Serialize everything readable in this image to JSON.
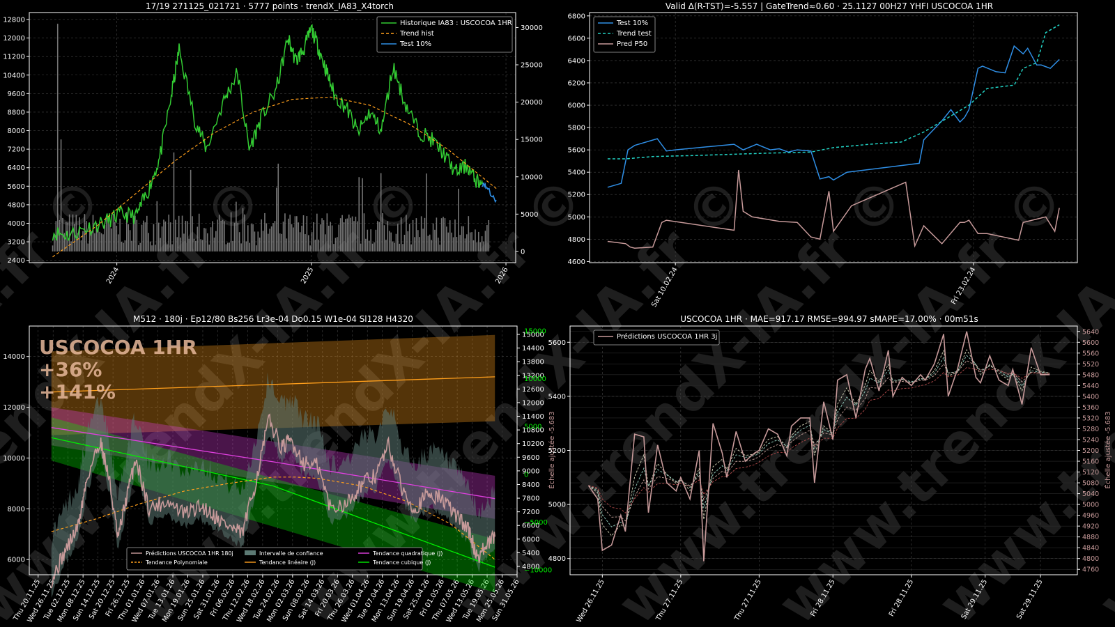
{
  "colors": {
    "background": "#000000",
    "axis": "#ffffff",
    "grid": "#444444",
    "green": "#33cc33",
    "orange": "#ff9f1c",
    "blue": "#2f8fe6",
    "cyan": "#22d3c5",
    "pink": "#c79a9a",
    "magenta": "#e040e0",
    "lime": "#00ee00",
    "grey": "#8a8a8a",
    "watermark": "#1e1e1e"
  },
  "watermark_text": "www.trendX-IA.fr ©",
  "chart_data": [
    {
      "id": "top-left",
      "type": "line",
      "title": "17/19 271125_021721 · 5777 points · trendX_IA83_X4torch",
      "x_ticks": [
        "2024",
        "2025",
        "2026"
      ],
      "xlim": [
        2023.55,
        2026.05
      ],
      "ylim": [
        2300,
        13100
      ],
      "y_ticks": [
        2400,
        3200,
        4000,
        4800,
        5600,
        6400,
        7200,
        8000,
        8800,
        9600,
        10400,
        11200,
        12000,
        12800
      ],
      "y2lim": [
        -1500,
        32000
      ],
      "y2_ticks": [
        0,
        5000,
        10000,
        15000,
        20000,
        25000,
        30000
      ],
      "legend": [
        "Historique IA83 : USCOCOA 1HR",
        "Trend hist",
        "Test 10%"
      ],
      "legend_position": "top-right",
      "grid": true,
      "series": [
        {
          "name": "Historique IA83 : USCOCOA 1HR",
          "x": [
            2023.67,
            2023.75,
            2023.85,
            2023.95,
            2024.02,
            2024.1,
            2024.16,
            2024.22,
            2024.28,
            2024.32,
            2024.4,
            2024.46,
            2024.55,
            2024.62,
            2024.68,
            2024.74,
            2024.82,
            2024.88,
            2024.92,
            2024.96,
            2025.0,
            2025.04,
            2025.08,
            2025.12,
            2025.18,
            2025.24,
            2025.3,
            2025.36,
            2025.42,
            2025.48,
            2025.55,
            2025.62,
            2025.68,
            2025.74,
            2025.8,
            2025.84,
            2025.88
          ],
          "values": [
            3600,
            3500,
            3800,
            4100,
            4400,
            4300,
            5400,
            6800,
            9500,
            11500,
            8500,
            7200,
            9300,
            10500,
            7200,
            8500,
            9800,
            12000,
            11000,
            11500,
            12400,
            11500,
            10500,
            9500,
            9000,
            7900,
            8800,
            8000,
            10800,
            9200,
            8000,
            7600,
            7000,
            6200,
            6500,
            5900,
            5700
          ]
        },
        {
          "name": "Trend hist",
          "x": [
            2023.67,
            2023.9,
            2024.1,
            2024.3,
            2024.5,
            2024.7,
            2024.9,
            2025.1,
            2025.3,
            2025.5,
            2025.7,
            2025.95
          ],
          "values": [
            2550,
            3900,
            5300,
            6700,
            7900,
            8800,
            9350,
            9450,
            9100,
            8300,
            7200,
            5500
          ]
        },
        {
          "name": "Test 10%",
          "x": [
            2025.88,
            2025.9,
            2025.92,
            2025.95
          ],
          "values": [
            5700,
            5600,
            5300,
            5000
          ]
        }
      ]
    },
    {
      "id": "top-right",
      "type": "line",
      "title": "Valid Δ(R-TST)=-5.557 | GateTrend≈0.60 · 25.1127 00H27 YHFI USCOCOA 1HR",
      "x_ticks": [
        "Sat 10.02.24",
        "Fri 23.02.24"
      ],
      "x_tick_positions": [
        0.15,
        0.81
      ],
      "ylim": [
        4590,
        6830
      ],
      "y_ticks": [
        4600,
        4800,
        5000,
        5200,
        5400,
        5600,
        5800,
        6000,
        6200,
        6400,
        6600,
        6800
      ],
      "legend": [
        "Test 10%",
        "Trend test",
        "Pred P50"
      ],
      "legend_position": "top-left",
      "grid": true,
      "series": [
        {
          "name": "Test 10%",
          "x": [
            0.0,
            0.03,
            0.045,
            0.06,
            0.11,
            0.13,
            0.15,
            0.28,
            0.3,
            0.33,
            0.36,
            0.38,
            0.4,
            0.42,
            0.45,
            0.47,
            0.49,
            0.5,
            0.53,
            0.69,
            0.7,
            0.74,
            0.76,
            0.78,
            0.79,
            0.8,
            0.82,
            0.83,
            0.86,
            0.88,
            0.9,
            0.92,
            0.93,
            0.95,
            0.96,
            0.98,
            1.0
          ],
          "values": [
            5265,
            5300,
            5600,
            5640,
            5700,
            5590,
            5600,
            5650,
            5600,
            5650,
            5600,
            5610,
            5580,
            5600,
            5590,
            5340,
            5360,
            5330,
            5400,
            5480,
            5690,
            5860,
            5960,
            5850,
            5890,
            5960,
            6330,
            6350,
            6300,
            6290,
            6530,
            6460,
            6510,
            6360,
            6360,
            6330,
            6410
          ]
        },
        {
          "name": "Trend test",
          "x": [
            0.0,
            0.04,
            0.1,
            0.2,
            0.35,
            0.45,
            0.5,
            0.58,
            0.65,
            0.7,
            0.75,
            0.8,
            0.84,
            0.9,
            0.92,
            0.95,
            0.97,
            1.0
          ],
          "values": [
            5520,
            5520,
            5540,
            5550,
            5570,
            5580,
            5620,
            5650,
            5670,
            5760,
            5880,
            6000,
            6150,
            6180,
            6330,
            6380,
            6650,
            6720
          ]
        },
        {
          "name": "Pred P50",
          "x": [
            0.0,
            0.04,
            0.05,
            0.06,
            0.1,
            0.12,
            0.13,
            0.28,
            0.29,
            0.3,
            0.32,
            0.35,
            0.38,
            0.42,
            0.45,
            0.47,
            0.49,
            0.5,
            0.54,
            0.66,
            0.68,
            0.7,
            0.74,
            0.78,
            0.79,
            0.8,
            0.82,
            0.84,
            0.91,
            0.92,
            0.95,
            0.97,
            0.99,
            1.0
          ],
          "values": [
            4780,
            4760,
            4730,
            4720,
            4730,
            4950,
            4970,
            4880,
            5420,
            5050,
            5000,
            4980,
            4960,
            4950,
            4820,
            4800,
            5230,
            4870,
            5100,
            5310,
            4740,
            4920,
            4760,
            4950,
            4950,
            4970,
            4850,
            4850,
            4790,
            4950,
            4980,
            5000,
            4870,
            5080
          ]
        }
      ]
    },
    {
      "id": "bottom-left",
      "type": "line",
      "title": "M512 · 180j · Ep12/80 Bs256 Lr3e-04 Do0.15 W1e-04 Sl128 H4320",
      "x_ticks": [
        "Thu 20.11.25",
        "Wed 26.11.25",
        "Tue 02.12.25",
        "Mon 08.12.25",
        "Sun 14.12.25",
        "Sat 20.12.25",
        "Fri 26.12.25",
        "Thu 01.01.26",
        "Wed 07.01.26",
        "Tue 13.01.26",
        "Mon 19.01.26",
        "Sun 25.01.26",
        "Sat 31.01.26",
        "Fri 06.02.26",
        "Thu 12.02.26",
        "Wed 18.02.26",
        "Tue 24.02.26",
        "Mon 02.03.26",
        "Sun 08.03.26",
        "Sat 14.03.26",
        "Fri 20.03.26",
        "Thu 26.03.26",
        "Wed 01.04.26",
        "Tue 07.04.26",
        "Mon 13.04.26",
        "Sun 19.04.26",
        "Sat 25.04.26",
        "Fri 01.05.26",
        "Thu 07.05.26",
        "Wed 13.05.26",
        "Tue 19.05.26",
        "Mon 25.05.26",
        "Sun 31.05.26"
      ],
      "ylim": [
        5400,
        15200
      ],
      "y_ticks": [
        6000,
        8000,
        10000,
        12000,
        14000
      ],
      "y2_label": "Échelle ajustée -5.683",
      "y2_ticks": [
        "4800",
        "5400",
        "6000",
        "6600",
        "7200",
        "7800",
        "8400",
        "9000",
        "9600",
        "10200",
        "10800",
        "11400",
        "12000",
        "12600",
        "13200",
        "13800",
        "14400",
        "15000"
      ],
      "y3_ticks": [
        "−10000",
        "−5000",
        "0",
        "5000",
        "10000",
        "15000"
      ],
      "annotation": [
        "USCOCOA 1HR",
        "+36%",
        "+141%"
      ],
      "legend": [
        "Prédictions USCOCOA 1HR 180j",
        "Tendance Polynomiale",
        "Intervalle de confiance",
        "Tendance linéaire (J)",
        "Tendance quadratique (J)",
        "Tendance cubique (J)"
      ],
      "legend_position": "bottom-center",
      "grid": true,
      "series": [
        {
          "name": "Prédictions USCOCOA 1HR 180j",
          "x": [
            0.0,
            0.03,
            0.06,
            0.08,
            0.11,
            0.13,
            0.15,
            0.17,
            0.19,
            0.22,
            0.26,
            0.3,
            0.34,
            0.37,
            0.4,
            0.43,
            0.46,
            0.49,
            0.52,
            0.54,
            0.57,
            0.6,
            0.63,
            0.67,
            0.7,
            0.73,
            0.76,
            0.79,
            0.82,
            0.85,
            0.88,
            0.91,
            0.94,
            0.96,
            0.98,
            1.0
          ],
          "values": [
            5200,
            6300,
            7300,
            9200,
            10700,
            9200,
            6800,
            8500,
            10000,
            8000,
            8300,
            7800,
            8100,
            7700,
            7300,
            7000,
            9000,
            11500,
            10400,
            10700,
            9800,
            9700,
            8000,
            8300,
            9000,
            9300,
            10500,
            8800,
            8000,
            8600,
            8400,
            7800,
            7200,
            6100,
            6500,
            6900
          ]
        },
        {
          "name": "Tendance Polynomiale",
          "x": [
            0.0,
            0.1,
            0.2,
            0.3,
            0.4,
            0.5,
            0.55,
            0.6,
            0.7,
            0.8,
            0.9,
            1.0
          ],
          "values": [
            7100,
            7600,
            8200,
            8700,
            9000,
            9250,
            9250,
            9200,
            8900,
            8300,
            7400,
            6000
          ]
        },
        {
          "name": "Tendance linéaire (J)",
          "x": [
            0.0,
            1.0
          ],
          "values": [
            12600,
            13200
          ]
        },
        {
          "name": "Tendance quadratique (J)",
          "x": [
            0.0,
            0.5,
            1.0
          ],
          "values": [
            11200,
            9850,
            8400
          ]
        },
        {
          "name": "Tendance cubique (J)",
          "x": [
            0.0,
            0.5,
            1.0
          ],
          "values": [
            10800,
            8900,
            5700
          ]
        }
      ]
    },
    {
      "id": "bottom-right",
      "type": "line",
      "title": "USCOCOA 1HR · MAE=917.17 RMSE=994.97 sMAPE=17.00% · 00m51s",
      "x_ticks": [
        "Wed 26.11.25",
        "Thu 27.11.25",
        "Thu 27.11.25",
        "Fri 28.11.25",
        "Fri 28.11.25",
        "Sat 29.11.25",
        "Sat 29.11.25"
      ],
      "x_tick_positions": [
        0.03,
        0.2,
        0.37,
        0.53,
        0.7,
        0.86,
        0.98
      ],
      "ylim": [
        4740,
        5660
      ],
      "y_ticks": [
        4800,
        5000,
        5200,
        5400,
        5600
      ],
      "y2_label": "Échelle ajustée -5.683",
      "y2_ticks": [
        4760,
        4800,
        4840,
        4880,
        4920,
        4960,
        5000,
        5040,
        5080,
        5120,
        5160,
        5200,
        5240,
        5280,
        5320,
        5360,
        5400,
        5440,
        5480,
        5520,
        5560,
        5600,
        5640
      ],
      "legend": [
        "Prédictions USCOCOA 1HR 3j"
      ],
      "legend_position": "top-left",
      "grid": true,
      "series": [
        {
          "name": "Prédictions USCOCOA 1HR 3j",
          "x": [
            0.0,
            0.02,
            0.03,
            0.05,
            0.07,
            0.08,
            0.1,
            0.12,
            0.13,
            0.15,
            0.17,
            0.19,
            0.2,
            0.22,
            0.24,
            0.25,
            0.27,
            0.29,
            0.3,
            0.32,
            0.34,
            0.36,
            0.37,
            0.39,
            0.41,
            0.43,
            0.44,
            0.46,
            0.48,
            0.49,
            0.51,
            0.53,
            0.54,
            0.56,
            0.58,
            0.6,
            0.61,
            0.63,
            0.65,
            0.66,
            0.68,
            0.7,
            0.72,
            0.73,
            0.75,
            0.77,
            0.78,
            0.8,
            0.82,
            0.84,
            0.85,
            0.87,
            0.89,
            0.91,
            0.92,
            0.94,
            0.96,
            0.98,
            1.0
          ],
          "values": [
            5070,
            5020,
            4830,
            4850,
            4960,
            4900,
            5260,
            5250,
            4970,
            5220,
            5080,
            5050,
            5100,
            5020,
            5200,
            4790,
            5300,
            5190,
            5100,
            5270,
            5160,
            5190,
            5200,
            5280,
            5260,
            5180,
            5290,
            5320,
            5320,
            5080,
            5380,
            5240,
            5460,
            5480,
            5320,
            5500,
            5540,
            5420,
            5570,
            5400,
            5470,
            5440,
            5480,
            5460,
            5520,
            5630,
            5400,
            5500,
            5640,
            5470,
            5450,
            5550,
            5460,
            5440,
            5500,
            5370,
            5580,
            5480,
            5480
          ]
        }
      ]
    }
  ]
}
